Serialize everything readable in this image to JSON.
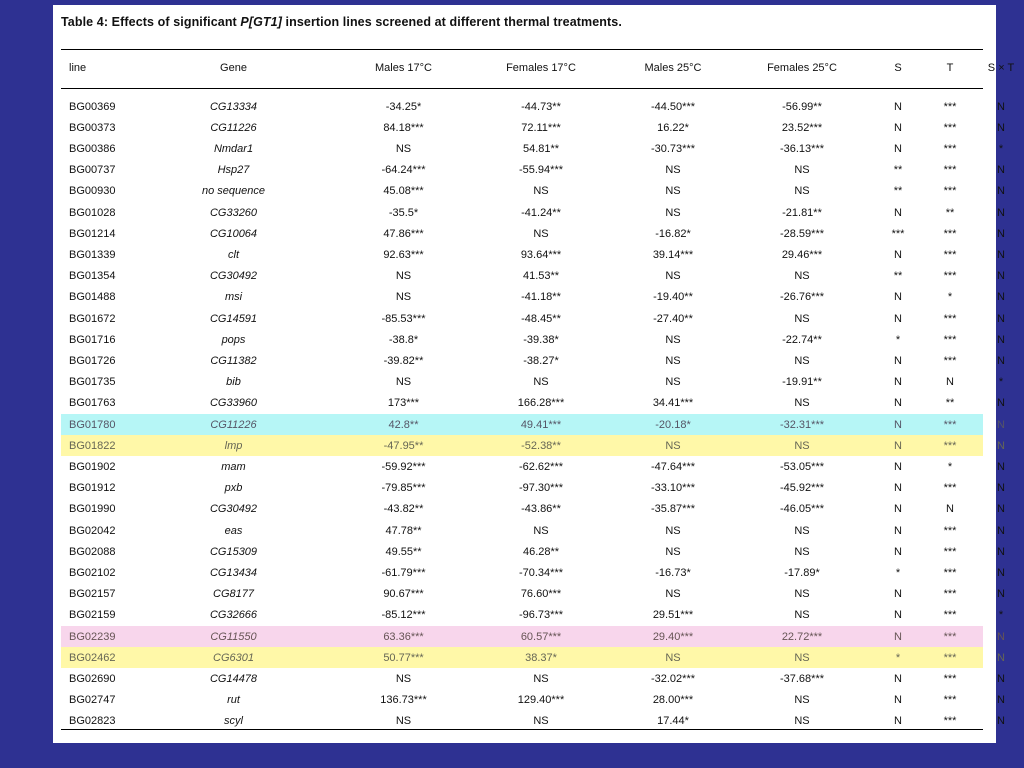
{
  "caption_prefix": "Table 4: Effects of significant ",
  "caption_italic": "P[GT1]",
  "caption_suffix": " insertion lines screened at different thermal treatments.",
  "headers": [
    "line",
    "Gene",
    "Males 17°C",
    "Females 17°C",
    "Males 25°C",
    "Females 25°C",
    "S",
    "T",
    "S × T"
  ],
  "highlight_colors": {
    "cyan": "#b6f6f6",
    "yellow": "#fff8a8",
    "pink": "#f8d6ec"
  },
  "rows": [
    {
      "line": "BG00369",
      "gene": "CG13334",
      "m17": "-34.25*",
      "f17": "-44.73**",
      "m25": "-44.50***",
      "f25": "-56.99**",
      "s": "N",
      "t": "***",
      "sxt": "N"
    },
    {
      "line": "BG00373",
      "gene": "CG11226",
      "m17": "84.18***",
      "f17": "72.11***",
      "m25": "16.22*",
      "f25": "23.52***",
      "s": "N",
      "t": "***",
      "sxt": "N"
    },
    {
      "line": "BG00386",
      "gene": "Nmdar1",
      "m17": "NS",
      "f17": "54.81**",
      "m25": "-30.73***",
      "f25": "-36.13***",
      "s": "N",
      "t": "***",
      "sxt": "*"
    },
    {
      "line": "BG00737",
      "gene": "Hsp27",
      "m17": "-64.24***",
      "f17": "-55.94***",
      "m25": "NS",
      "f25": "NS",
      "s": "**",
      "t": "***",
      "sxt": "N"
    },
    {
      "line": "BG00930",
      "gene": "no sequence",
      "m17": "45.08***",
      "f17": "NS",
      "m25": "NS",
      "f25": "NS",
      "s": "**",
      "t": "***",
      "sxt": "N"
    },
    {
      "line": "BG01028",
      "gene": "CG33260",
      "m17": "-35.5*",
      "f17": "-41.24**",
      "m25": "NS",
      "f25": "-21.81**",
      "s": "N",
      "t": "**",
      "sxt": "N"
    },
    {
      "line": "BG01214",
      "gene": "CG10064",
      "m17": "47.86***",
      "f17": "NS",
      "m25": "-16.82*",
      "f25": "-28.59***",
      "s": "***",
      "t": "***",
      "sxt": "N"
    },
    {
      "line": "BG01339",
      "gene": "clt",
      "m17": "92.63***",
      "f17": "93.64***",
      "m25": "39.14***",
      "f25": "29.46***",
      "s": "N",
      "t": "***",
      "sxt": "N"
    },
    {
      "line": "BG01354",
      "gene": "CG30492",
      "m17": "NS",
      "f17": "41.53**",
      "m25": "NS",
      "f25": "NS",
      "s": "**",
      "t": "***",
      "sxt": "N"
    },
    {
      "line": "BG01488",
      "gene": "msi",
      "m17": "NS",
      "f17": "-41.18**",
      "m25": "-19.40**",
      "f25": "-26.76***",
      "s": "N",
      "t": "*",
      "sxt": "N"
    },
    {
      "line": "BG01672",
      "gene": "CG14591",
      "m17": "-85.53***",
      "f17": "-48.45**",
      "m25": "-27.40**",
      "f25": "NS",
      "s": "N",
      "t": "***",
      "sxt": "N"
    },
    {
      "line": "BG01716",
      "gene": "pops",
      "m17": "-38.8*",
      "f17": "-39.38*",
      "m25": "NS",
      "f25": "-22.74**",
      "s": "*",
      "t": "***",
      "sxt": "N"
    },
    {
      "line": "BG01726",
      "gene": "CG11382",
      "m17": "-39.82**",
      "f17": "-38.27*",
      "m25": "NS",
      "f25": "NS",
      "s": "N",
      "t": "***",
      "sxt": "N"
    },
    {
      "line": "BG01735",
      "gene": "bib",
      "m17": "NS",
      "f17": "NS",
      "m25": "NS",
      "f25": "-19.91**",
      "s": "N",
      "t": "N",
      "sxt": "*"
    },
    {
      "line": "BG01763",
      "gene": "CG33960",
      "m17": "173***",
      "f17": "166.28***",
      "m25": "34.41***",
      "f25": "NS",
      "s": "N",
      "t": "**",
      "sxt": "N"
    },
    {
      "line": "BG01780",
      "gene": "CG11226",
      "m17": "42.8**",
      "f17": "49.41***",
      "m25": "-20.18*",
      "f25": "-32.31***",
      "s": "N",
      "t": "***",
      "sxt": "N",
      "hl": "cyan"
    },
    {
      "line": "BG01822",
      "gene": "lmp",
      "m17": "-47.95**",
      "f17": "-52.38**",
      "m25": "NS",
      "f25": "NS",
      "s": "N",
      "t": "***",
      "sxt": "N",
      "hl": "yellow"
    },
    {
      "line": "BG01902",
      "gene": "mam",
      "m17": "-59.92***",
      "f17": "-62.62***",
      "m25": "-47.64***",
      "f25": "-53.05***",
      "s": "N",
      "t": "*",
      "sxt": "N"
    },
    {
      "line": "BG01912",
      "gene": "pxb",
      "m17": "-79.85***",
      "f17": "-97.30***",
      "m25": "-33.10***",
      "f25": "-45.92***",
      "s": "N",
      "t": "***",
      "sxt": "N"
    },
    {
      "line": "BG01990",
      "gene": "CG30492",
      "m17": "-43.82**",
      "f17": "-43.86**",
      "m25": "-35.87***",
      "f25": "-46.05***",
      "s": "N",
      "t": "N",
      "sxt": "N"
    },
    {
      "line": "BG02042",
      "gene": "eas",
      "m17": "47.78**",
      "f17": "NS",
      "m25": "NS",
      "f25": "NS",
      "s": "N",
      "t": "***",
      "sxt": "N"
    },
    {
      "line": "BG02088",
      "gene": "CG15309",
      "m17": "49.55**",
      "f17": "46.28**",
      "m25": "NS",
      "f25": "NS",
      "s": "N",
      "t": "***",
      "sxt": "N"
    },
    {
      "line": "BG02102",
      "gene": "CG13434",
      "m17": "-61.79***",
      "f17": "-70.34***",
      "m25": "-16.73*",
      "f25": "-17.89*",
      "s": "*",
      "t": "***",
      "sxt": "N"
    },
    {
      "line": "BG02157",
      "gene": "CG8177",
      "m17": "90.67***",
      "f17": "76.60***",
      "m25": "NS",
      "f25": "NS",
      "s": "N",
      "t": "***",
      "sxt": "N"
    },
    {
      "line": "BG02159",
      "gene": "CG32666",
      "m17": "-85.12***",
      "f17": "-96.73***",
      "m25": "29.51***",
      "f25": "NS",
      "s": "N",
      "t": "***",
      "sxt": "*"
    },
    {
      "line": "BG02239",
      "gene": "CG11550",
      "m17": "63.36***",
      "f17": "60.57***",
      "m25": "29.40***",
      "f25": "22.72***",
      "s": "N",
      "t": "***",
      "sxt": "N",
      "hl": "pink"
    },
    {
      "line": "BG02462",
      "gene": "CG6301",
      "m17": "50.77***",
      "f17": "38.37*",
      "m25": "NS",
      "f25": "NS",
      "s": "*",
      "t": "***",
      "sxt": "N",
      "hl": "yellow"
    },
    {
      "line": "BG02690",
      "gene": "CG14478",
      "m17": "NS",
      "f17": "NS",
      "m25": "-32.02***",
      "f25": "-37.68***",
      "s": "N",
      "t": "***",
      "sxt": "N"
    },
    {
      "line": "BG02747",
      "gene": "rut",
      "m17": "136.73***",
      "f17": "129.40***",
      "m25": "28.00***",
      "f25": "NS",
      "s": "N",
      "t": "***",
      "sxt": "N"
    },
    {
      "line": "BG02823",
      "gene": "scyl",
      "m17": "NS",
      "f17": "NS",
      "m25": "17.44*",
      "f25": "NS",
      "s": "N",
      "t": "***",
      "sxt": "N"
    }
  ]
}
